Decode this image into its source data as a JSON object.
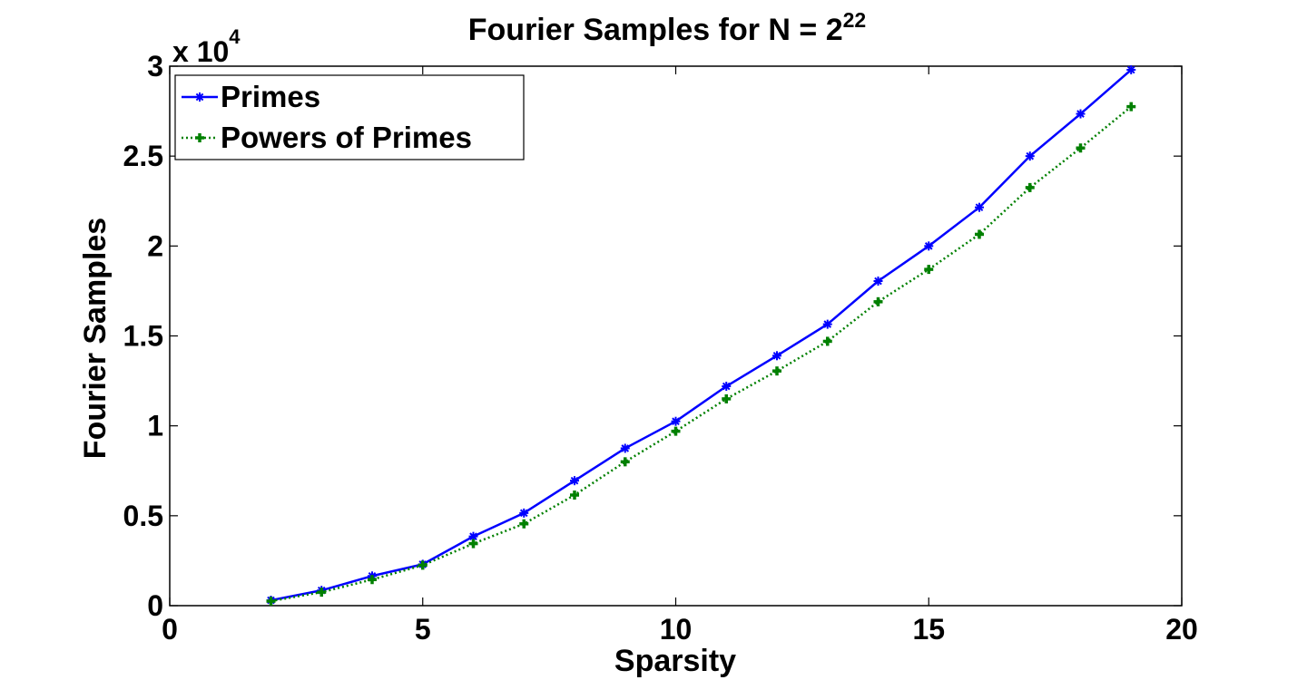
{
  "chart_data": {
    "type": "line",
    "title": "Fourier Samples for N = 2",
    "title_superscript": "22",
    "xlabel": "Sparsity",
    "ylabel": "Fourier Samples",
    "y_multiplier_base": "x 10",
    "y_multiplier_exp": "4",
    "xlim": [
      0,
      20
    ],
    "ylim": [
      0,
      3
    ],
    "x_ticks": [
      0,
      5,
      10,
      15,
      20
    ],
    "x_tick_labels": [
      "0",
      "5",
      "10",
      "15",
      "20"
    ],
    "y_ticks": [
      0,
      0.5,
      1,
      1.5,
      2,
      2.5,
      3
    ],
    "y_tick_labels": [
      "0",
      "0.5",
      "1",
      "1.5",
      "2",
      "2.5",
      "3"
    ],
    "grid": false,
    "legend_position": "top-left",
    "x": [
      2,
      3,
      4,
      5,
      6,
      7,
      8,
      9,
      10,
      11,
      12,
      13,
      14,
      15,
      16,
      17,
      18,
      19
    ],
    "series": [
      {
        "name": "Primes",
        "color": "#0000ff",
        "line_style": "solid",
        "marker": "asterisk",
        "values": [
          0.03,
          0.085,
          0.165,
          0.23,
          0.385,
          0.515,
          0.695,
          0.875,
          1.025,
          1.22,
          1.39,
          1.565,
          1.805,
          2.0,
          2.215,
          2.5,
          2.735,
          2.98
        ]
      },
      {
        "name": "Powers of  Primes",
        "color": "#008000",
        "line_style": "dotted",
        "marker": "plus",
        "values": [
          0.025,
          0.075,
          0.145,
          0.225,
          0.345,
          0.455,
          0.615,
          0.8,
          0.97,
          1.15,
          1.305,
          1.47,
          1.69,
          1.87,
          2.065,
          2.325,
          2.545,
          2.775
        ]
      }
    ]
  }
}
